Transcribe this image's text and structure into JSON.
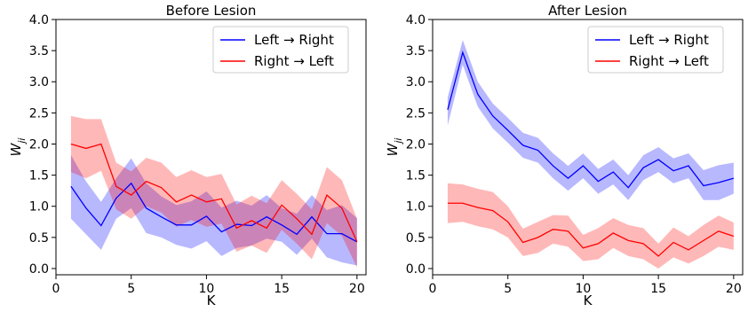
{
  "chart_data": [
    {
      "type": "line",
      "title": "Before Lesion",
      "xlabel": "K",
      "ylabel": "W_ji",
      "xlim": [
        0,
        20.6
      ],
      "ylim": [
        -0.1,
        4.0
      ],
      "xticks": [
        0,
        5,
        10,
        15,
        20
      ],
      "xtick_labels": [
        "0",
        "5",
        "10",
        "15",
        "20"
      ],
      "yticks": [
        0.0,
        0.5,
        1.0,
        1.5,
        2.0,
        2.5,
        3.0,
        3.5,
        4.0
      ],
      "ytick_labels": [
        "0.0",
        "0.5",
        "1.0",
        "1.5",
        "2.0",
        "2.5",
        "3.0",
        "3.5",
        "4.0"
      ],
      "grid": false,
      "legend_position": "top-right",
      "x": [
        1,
        2,
        3,
        4,
        5,
        6,
        7,
        8,
        9,
        10,
        11,
        12,
        13,
        14,
        15,
        16,
        17,
        18,
        19,
        20
      ],
      "series": [
        {
          "name": "Left → Right",
          "color": "#0000ff",
          "values": [
            1.32,
            0.97,
            0.69,
            1.13,
            1.37,
            0.97,
            0.83,
            0.7,
            0.7,
            0.84,
            0.59,
            0.71,
            0.69,
            0.83,
            0.7,
            0.55,
            0.83,
            0.56,
            0.56,
            0.43
          ],
          "band_low": [
            0.8,
            0.55,
            0.3,
            0.8,
            0.97,
            0.57,
            0.5,
            0.38,
            0.32,
            0.44,
            0.2,
            0.33,
            0.37,
            0.48,
            0.43,
            0.22,
            0.48,
            0.18,
            0.1,
            0.05
          ],
          "band_high": [
            1.82,
            1.4,
            1.07,
            1.45,
            1.77,
            1.37,
            1.16,
            1.02,
            1.08,
            1.24,
            0.98,
            1.09,
            1.01,
            1.18,
            0.97,
            0.88,
            1.18,
            0.94,
            1.02,
            0.81
          ]
        },
        {
          "name": "Right → Left",
          "color": "#ff0000",
          "values": [
            2.0,
            1.93,
            2.0,
            1.32,
            1.18,
            1.4,
            1.3,
            1.07,
            1.18,
            1.07,
            1.12,
            0.65,
            0.77,
            0.65,
            1.02,
            0.8,
            0.55,
            1.18,
            0.97,
            0.43
          ],
          "band_low": [
            1.55,
            1.45,
            1.57,
            0.95,
            0.8,
            1.0,
            0.9,
            0.67,
            0.78,
            0.67,
            0.72,
            0.27,
            0.37,
            0.25,
            0.62,
            0.4,
            0.15,
            0.73,
            0.52,
            0.02
          ],
          "band_high": [
            2.45,
            2.4,
            2.4,
            1.7,
            1.56,
            1.78,
            1.7,
            1.47,
            1.58,
            1.47,
            1.52,
            1.03,
            1.17,
            1.05,
            1.42,
            1.2,
            0.95,
            1.63,
            1.42,
            0.8
          ]
        }
      ]
    },
    {
      "type": "line",
      "title": "After Lesion",
      "xlabel": "K",
      "ylabel": "W_ji",
      "xlim": [
        0,
        20.6
      ],
      "ylim": [
        -0.1,
        4.0
      ],
      "xticks": [
        0,
        5,
        10,
        15,
        20
      ],
      "xtick_labels": [
        "0",
        "5",
        "10",
        "15",
        "20"
      ],
      "yticks": [
        0.0,
        0.5,
        1.0,
        1.5,
        2.0,
        2.5,
        3.0,
        3.5,
        4.0
      ],
      "ytick_labels": [
        "0.0",
        "0.5",
        "1.0",
        "1.5",
        "2.0",
        "2.5",
        "3.0",
        "3.5",
        "4.0"
      ],
      "grid": false,
      "legend_position": "top-right",
      "x": [
        1,
        2,
        3,
        4,
        5,
        6,
        7,
        8,
        9,
        10,
        11,
        12,
        13,
        14,
        15,
        16,
        17,
        18,
        19,
        20
      ],
      "series": [
        {
          "name": "Left → Right",
          "color": "#0000ff",
          "values": [
            2.55,
            3.47,
            2.8,
            2.45,
            2.22,
            1.98,
            1.9,
            1.65,
            1.45,
            1.65,
            1.4,
            1.55,
            1.3,
            1.62,
            1.75,
            1.57,
            1.65,
            1.33,
            1.38,
            1.45
          ],
          "band_low": [
            2.3,
            3.27,
            2.6,
            2.25,
            2.02,
            1.78,
            1.7,
            1.45,
            1.25,
            1.45,
            1.2,
            1.35,
            1.1,
            1.42,
            1.55,
            1.37,
            1.45,
            1.1,
            1.1,
            1.2
          ],
          "band_high": [
            2.75,
            3.67,
            3.0,
            2.65,
            2.42,
            2.18,
            2.1,
            1.85,
            1.65,
            1.85,
            1.6,
            1.75,
            1.5,
            1.82,
            1.95,
            1.77,
            1.85,
            1.58,
            1.66,
            1.7
          ]
        },
        {
          "name": "Right → Left",
          "color": "#ff0000",
          "values": [
            1.05,
            1.05,
            0.98,
            0.93,
            0.75,
            0.42,
            0.5,
            0.63,
            0.6,
            0.33,
            0.4,
            0.57,
            0.45,
            0.4,
            0.2,
            0.42,
            0.3,
            0.45,
            0.6,
            0.52
          ],
          "band_low": [
            0.73,
            0.75,
            0.68,
            0.63,
            0.5,
            0.2,
            0.25,
            0.4,
            0.35,
            0.12,
            0.15,
            0.33,
            0.2,
            0.15,
            0.0,
            0.18,
            0.08,
            0.2,
            0.35,
            0.3
          ],
          "band_high": [
            1.37,
            1.35,
            1.28,
            1.23,
            1.0,
            0.64,
            0.75,
            0.86,
            0.85,
            0.54,
            0.65,
            0.81,
            0.7,
            0.65,
            0.4,
            0.66,
            0.52,
            0.7,
            0.85,
            0.74
          ]
        }
      ]
    }
  ]
}
